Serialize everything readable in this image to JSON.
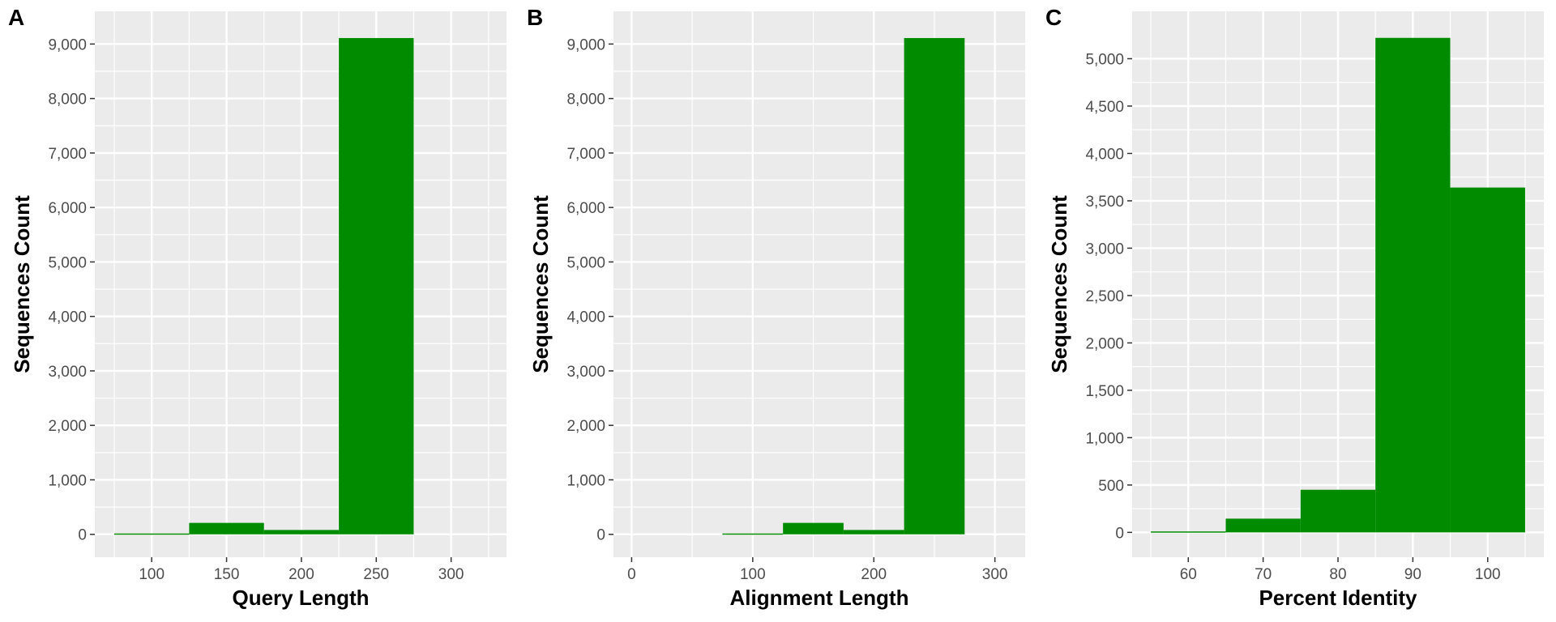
{
  "chart_data": [
    {
      "panel_label": "A",
      "type": "bar",
      "xlabel": "Query Length",
      "ylabel": "Sequences Count",
      "bar_color": "#008B00",
      "background_color": "#EBEBEB",
      "grid_color": "#FFFFFF",
      "grid": true,
      "bin_width": 50,
      "xlim": [
        62,
        337
      ],
      "ylim": [
        -420,
        9600
      ],
      "xticks": [
        100,
        150,
        200,
        250,
        300
      ],
      "xtick_labels": [
        "100",
        "150",
        "200",
        "250",
        "300"
      ],
      "yticks": [
        0,
        1000,
        2000,
        3000,
        4000,
        5000,
        6000,
        7000,
        8000,
        9000
      ],
      "ytick_labels": [
        "0",
        "1,000",
        "2,000",
        "3,000",
        "4,000",
        "5,000",
        "6,000",
        "7,000",
        "8,000",
        "9,000"
      ],
      "bins": [
        {
          "x": 100,
          "value": 15
        },
        {
          "x": 150,
          "value": 210
        },
        {
          "x": 200,
          "value": 80
        },
        {
          "x": 250,
          "value": 9110
        }
      ]
    },
    {
      "panel_label": "B",
      "type": "bar",
      "xlabel": "Alignment Length",
      "ylabel": "Sequences Count",
      "bar_color": "#008B00",
      "background_color": "#EBEBEB",
      "grid_color": "#FFFFFF",
      "grid": true,
      "bin_width": 50,
      "xlim": [
        -15,
        325
      ],
      "ylim": [
        -420,
        9600
      ],
      "xticks": [
        0,
        100,
        200,
        300
      ],
      "xtick_labels": [
        "0",
        "100",
        "200",
        "300"
      ],
      "yticks": [
        0,
        1000,
        2000,
        3000,
        4000,
        5000,
        6000,
        7000,
        8000,
        9000
      ],
      "ytick_labels": [
        "0",
        "1,000",
        "2,000",
        "3,000",
        "4,000",
        "5,000",
        "6,000",
        "7,000",
        "8,000",
        "9,000"
      ],
      "bins": [
        {
          "x": 100,
          "value": 15
        },
        {
          "x": 150,
          "value": 210
        },
        {
          "x": 200,
          "value": 80
        },
        {
          "x": 250,
          "value": 9110
        }
      ]
    },
    {
      "panel_label": "C",
      "type": "bar",
      "xlabel": "Percent Identity",
      "ylabel": "Sequences Count",
      "bar_color": "#008B00",
      "background_color": "#EBEBEB",
      "grid_color": "#FFFFFF",
      "grid": true,
      "bin_width": 10,
      "xlim": [
        52.5,
        107.5
      ],
      "ylim": [
        -262,
        5500
      ],
      "xticks": [
        60,
        70,
        80,
        90,
        100
      ],
      "xtick_labels": [
        "60",
        "70",
        "80",
        "90",
        "100"
      ],
      "yticks": [
        0,
        500,
        1000,
        1500,
        2000,
        2500,
        3000,
        3500,
        4000,
        4500,
        5000
      ],
      "ytick_labels": [
        "0",
        "500",
        "1,000",
        "1,500",
        "2,000",
        "2,500",
        "3,000",
        "3,500",
        "4,000",
        "4,500",
        "5,000"
      ],
      "bins": [
        {
          "x": 60,
          "value": 10
        },
        {
          "x": 70,
          "value": 145
        },
        {
          "x": 80,
          "value": 450
        },
        {
          "x": 90,
          "value": 5220
        },
        {
          "x": 100,
          "value": 3640
        }
      ]
    }
  ]
}
